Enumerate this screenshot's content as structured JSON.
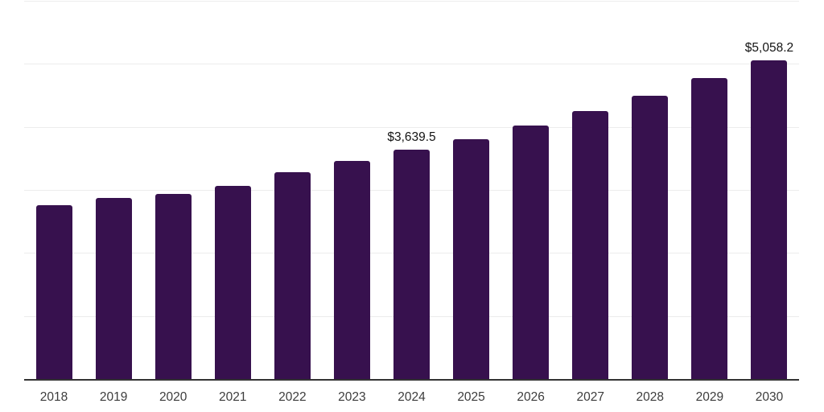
{
  "chart_data": {
    "type": "bar",
    "title": "",
    "xlabel": "",
    "ylabel": "",
    "categories": [
      "2018",
      "2019",
      "2020",
      "2021",
      "2022",
      "2023",
      "2024",
      "2025",
      "2026",
      "2027",
      "2028",
      "2029",
      "2030"
    ],
    "values": [
      2755,
      2870,
      2940,
      3070,
      3275,
      3465,
      3639.5,
      3810,
      4015,
      4245,
      4495,
      4775,
      5058.2
    ],
    "value_labels": [
      {
        "category": "2024",
        "text": "$3,639.5"
      },
      {
        "category": "2030",
        "text": "$5,058.2"
      }
    ],
    "ylim": [
      0,
      6000
    ],
    "gridline_step": 1000,
    "grid": "horizontal",
    "legend_position": "none",
    "y_axis_tick_labels": "none",
    "colors": {
      "bar": "#37114E",
      "gridline": "#ECECEC",
      "axis": "#333333",
      "tick_label": "#3C3C3C",
      "value_label": "#141414",
      "background": "#FFFFFF"
    }
  }
}
